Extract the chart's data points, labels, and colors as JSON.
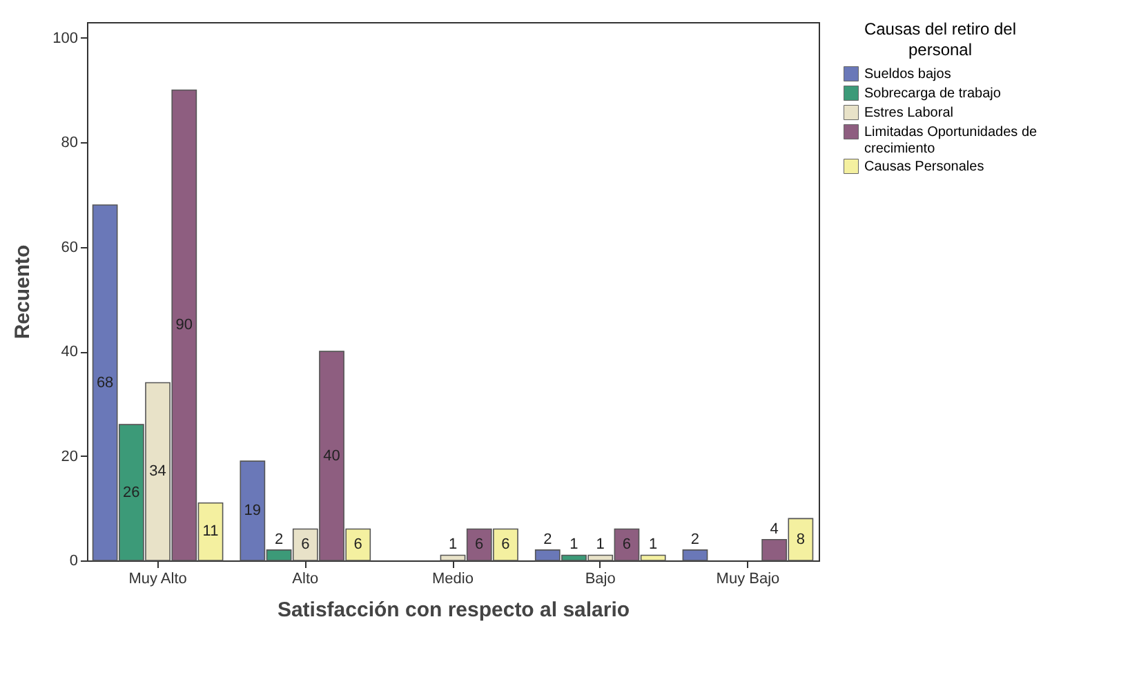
{
  "chart_data": {
    "type": "bar",
    "xlabel": "Satisfacción con respecto al salario",
    "ylabel": "Recuento",
    "legend_title": "Causas del retiro del personal",
    "categories": [
      "Muy Alto",
      "Alto",
      "Medio",
      "Bajo",
      "Muy Bajo"
    ],
    "series": [
      {
        "name": "Sueldos bajos",
        "color": "#6a78b8",
        "values": [
          68,
          19,
          null,
          2,
          2
        ]
      },
      {
        "name": "Sobrecarga de trabajo",
        "color": "#3c9a78",
        "values": [
          26,
          2,
          null,
          1,
          null
        ]
      },
      {
        "name": "Estres Laboral",
        "color": "#e8e2c8",
        "values": [
          34,
          6,
          1,
          1,
          null
        ]
      },
      {
        "name": "Limitadas Oportunidades de crecimiento",
        "color": "#8e5e80",
        "values": [
          90,
          40,
          6,
          6,
          4
        ]
      },
      {
        "name": "Causas Personales",
        "color": "#f4f0a0",
        "values": [
          11,
          6,
          6,
          1,
          8
        ]
      }
    ],
    "ylim": [
      0,
      103
    ],
    "yticks": [
      0,
      20,
      40,
      60,
      80,
      100
    ],
    "data_labels": true,
    "legend": "top right",
    "grid": false
  }
}
